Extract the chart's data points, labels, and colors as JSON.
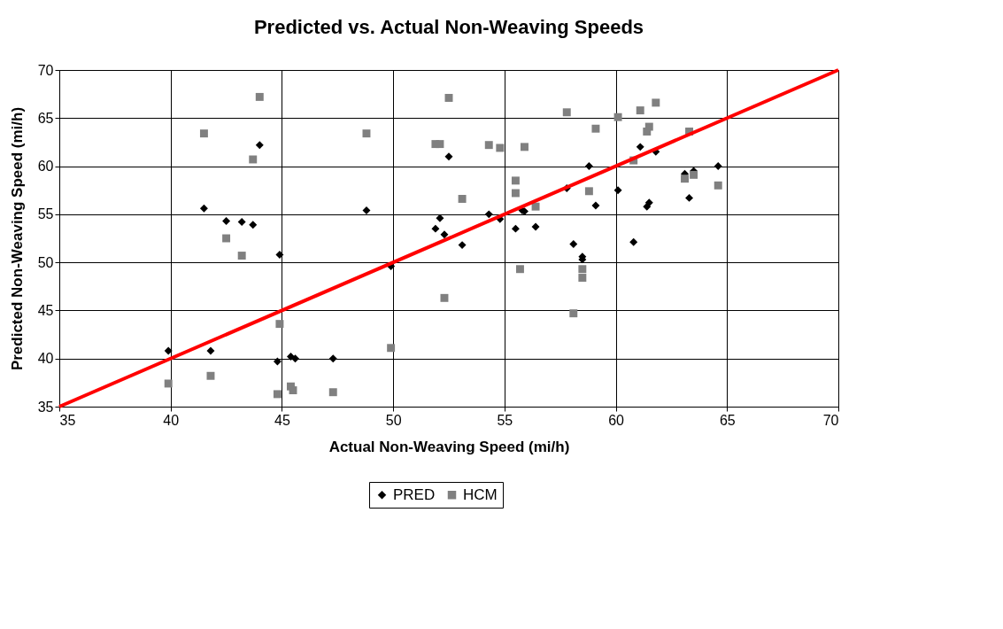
{
  "chart_data": {
    "type": "scatter",
    "title": "Predicted vs. Actual Non-Weaving Speeds",
    "xlabel": "Actual Non-Weaving Speed (mi/h)",
    "ylabel": "Predicted Non-Weaving Speed (mi/h)",
    "xlim": [
      35,
      70
    ],
    "ylim": [
      35,
      70
    ],
    "xticks": [
      35,
      40,
      45,
      50,
      55,
      60,
      65,
      70
    ],
    "yticks": [
      35,
      40,
      45,
      50,
      55,
      60,
      65,
      70
    ],
    "grid": true,
    "legend": "bottom",
    "series": [
      {
        "name": "PRED",
        "marker": "diamond",
        "color": "#000000",
        "x": [
          39.9,
          41.8,
          41.5,
          42.5,
          43.2,
          43.7,
          44.0,
          44.9,
          44.8,
          45.4,
          45.6,
          47.3,
          48.8,
          49.9,
          51.9,
          52.1,
          52.3,
          52.5,
          53.1,
          54.3,
          54.8,
          55.5,
          55.8,
          55.9,
          56.4,
          57.8,
          58.1,
          58.5,
          58.5,
          58.8,
          59.1,
          60.1,
          60.8,
          61.1,
          61.4,
          61.5,
          61.8,
          63.1,
          63.3,
          63.5,
          64.6
        ],
        "values": [
          40.8,
          40.8,
          55.6,
          54.3,
          54.2,
          53.9,
          62.2,
          50.8,
          39.7,
          40.2,
          40.0,
          40.0,
          55.4,
          49.6,
          53.5,
          54.6,
          52.9,
          61.0,
          51.8,
          55.0,
          54.5,
          53.5,
          55.4,
          55.3,
          53.7,
          57.7,
          51.9,
          50.3,
          50.6,
          60.0,
          55.9,
          57.5,
          52.1,
          62.0,
          55.8,
          56.2,
          61.5,
          59.2,
          56.7,
          59.5,
          60.0
        ]
      },
      {
        "name": "HCM",
        "marker": "square",
        "color": "#808080",
        "x": [
          39.9,
          41.5,
          41.8,
          42.5,
          43.2,
          43.7,
          44.0,
          44.9,
          44.8,
          45.4,
          45.5,
          47.3,
          48.8,
          49.9,
          51.9,
          52.1,
          52.3,
          52.5,
          53.1,
          54.3,
          54.8,
          55.5,
          55.5,
          55.7,
          55.9,
          56.4,
          57.8,
          58.1,
          58.5,
          58.5,
          58.8,
          59.1,
          60.1,
          60.8,
          61.1,
          61.4,
          61.5,
          61.8,
          63.1,
          63.3,
          63.5,
          64.6
        ],
        "values": [
          37.4,
          63.4,
          38.2,
          52.5,
          50.7,
          60.7,
          67.2,
          43.6,
          36.3,
          37.1,
          36.7,
          36.5,
          63.4,
          41.1,
          62.3,
          62.3,
          46.3,
          67.1,
          56.6,
          62.2,
          61.9,
          58.5,
          57.2,
          49.3,
          62.0,
          55.8,
          65.6,
          44.7,
          49.3,
          48.4,
          57.4,
          63.9,
          65.1,
          60.6,
          65.8,
          63.6,
          64.1,
          66.6,
          58.7,
          63.6,
          59.1,
          58.0
        ]
      },
      {
        "type": "line",
        "line_style": "solid",
        "color": "#ff0000",
        "x": [
          35,
          70
        ],
        "values": [
          35,
          70
        ]
      }
    ]
  }
}
